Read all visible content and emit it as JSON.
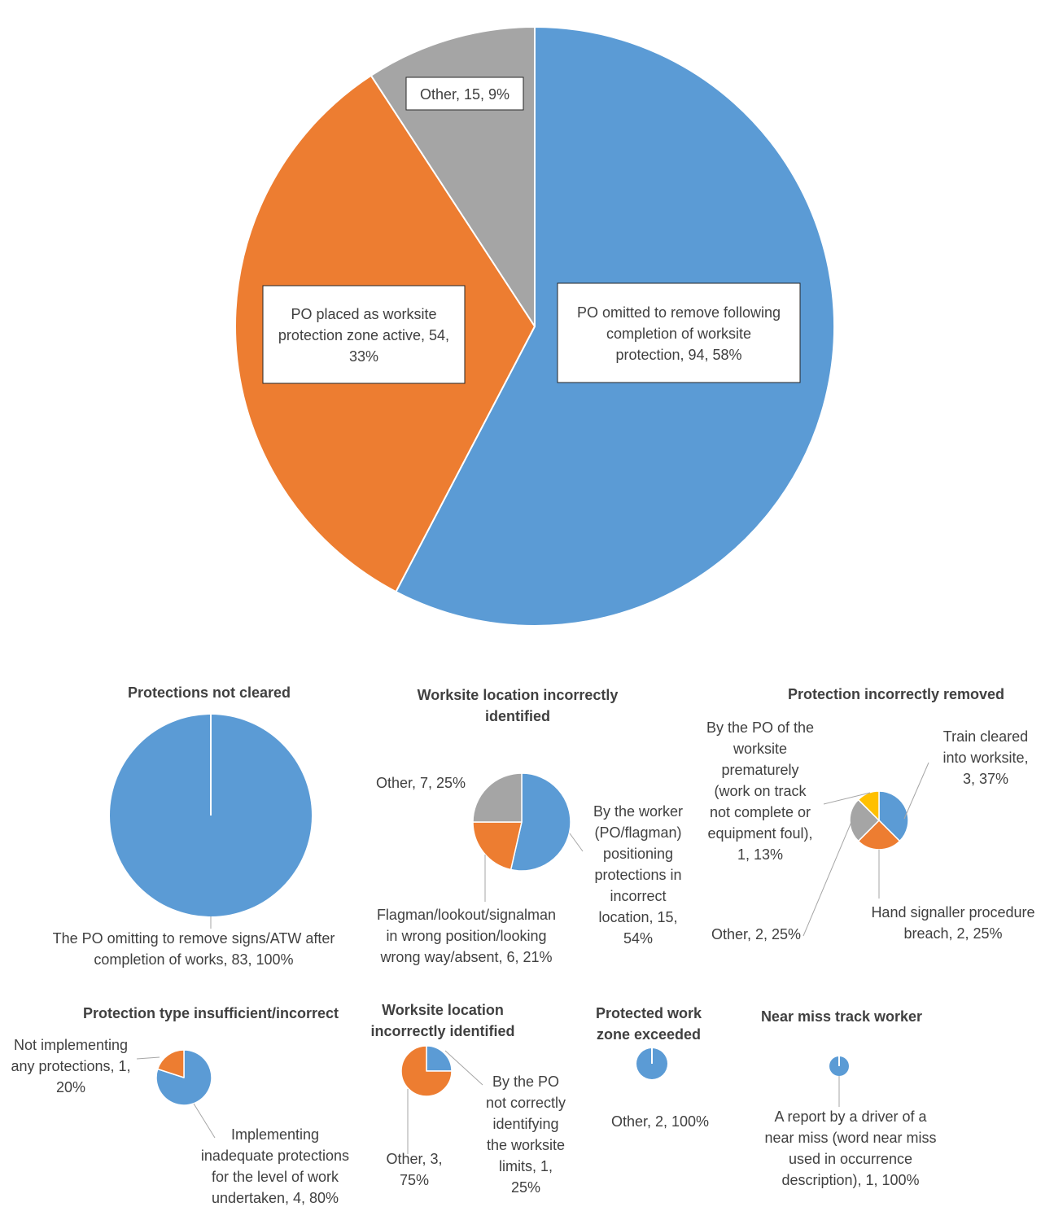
{
  "colors": {
    "blue": "#5b9bd5",
    "orange": "#ed7d31",
    "gray": "#a5a5a5",
    "yellow": "#ffc000",
    "leader": "#a6a6a6",
    "text": "#404040"
  },
  "chart_data": [
    {
      "id": "main",
      "type": "pie",
      "title": "",
      "slices": [
        {
          "name": "PO omitted to remove following completion of worksite protection",
          "value": 94,
          "percent": 58,
          "color": "blue",
          "label_lines": [
            "PO omitted to remove following",
            "completion of worksite",
            "protection, 94, 58%"
          ]
        },
        {
          "name": "PO placed as worksite protection zone active",
          "value": 54,
          "percent": 33,
          "color": "orange",
          "label_lines": [
            "PO placed as worksite",
            "protection zone active, 54,",
            "33%"
          ]
        },
        {
          "name": "Other",
          "value": 15,
          "percent": 9,
          "color": "gray",
          "label_lines": [
            "Other, 15, 9%"
          ]
        }
      ]
    },
    {
      "id": "protections-not-cleared",
      "type": "pie",
      "title": "Protections not cleared",
      "slices": [
        {
          "name": "The PO omitting to remove signs/ATW after completion of works",
          "value": 83,
          "percent": 100,
          "color": "blue",
          "label_lines": [
            "The PO omitting to remove signs/ATW after",
            "completion of works, 83, 100%"
          ]
        }
      ]
    },
    {
      "id": "worksite-location-1",
      "type": "pie",
      "title": "Worksite location incorrectly identified",
      "title_lines": [
        "Worksite location incorrectly",
        "identified"
      ],
      "slices": [
        {
          "name": "By the worker (PO/flagman) positioning protections in incorrect location",
          "value": 15,
          "percent": 54,
          "color": "blue",
          "label_lines": [
            "By the worker",
            "(PO/flagman)",
            "positioning",
            "protections in",
            "incorrect",
            "location, 15,",
            "54%"
          ]
        },
        {
          "name": "Flagman/lookout/signalman in wrong position/looking wrong way/absent",
          "value": 6,
          "percent": 21,
          "color": "orange",
          "label_lines": [
            "Flagman/lookout/signalman",
            "in wrong position/looking",
            "wrong way/absent, 6, 21%"
          ]
        },
        {
          "name": "Other",
          "value": 7,
          "percent": 25,
          "color": "gray",
          "label_lines": [
            "Other, 7, 25%"
          ]
        }
      ]
    },
    {
      "id": "protection-incorrectly-removed",
      "type": "pie",
      "title": "Protection incorrectly removed",
      "slices": [
        {
          "name": "Train cleared into worksite",
          "value": 3,
          "percent": 37,
          "color": "blue",
          "label_lines": [
            "Train cleared",
            "into worksite,",
            "3, 37%"
          ]
        },
        {
          "name": "Hand signaller procedure breach",
          "value": 2,
          "percent": 25,
          "color": "orange",
          "label_lines": [
            "Hand signaller procedure",
            "breach, 2, 25%"
          ]
        },
        {
          "name": "Other",
          "value": 2,
          "percent": 25,
          "color": "gray",
          "label_lines": [
            "Other, 2, 25%"
          ]
        },
        {
          "name": "By the PO of the worksite prematurely (work on track not complete or equipment foul)",
          "value": 1,
          "percent": 13,
          "color": "yellow",
          "label_lines": [
            "By the PO of the",
            "worksite",
            "prematurely",
            "(work on track",
            "not complete or",
            "equipment foul),",
            "1, 13%"
          ]
        }
      ]
    },
    {
      "id": "protection-type",
      "type": "pie",
      "title": "Protection type insufficient/incorrect",
      "slices": [
        {
          "name": "Implementing inadequate protections for the level of work undertaken",
          "value": 4,
          "percent": 80,
          "color": "blue",
          "label_lines": [
            "Implementing",
            "inadequate protections",
            "for the level of work",
            "undertaken, 4, 80%"
          ]
        },
        {
          "name": "Not implementing any protections",
          "value": 1,
          "percent": 20,
          "color": "orange",
          "label_lines": [
            "Not implementing",
            "any protections, 1,",
            "20%"
          ]
        }
      ]
    },
    {
      "id": "worksite-location-2",
      "type": "pie",
      "title": "Worksite location incorrectly identified",
      "title_lines": [
        "Worksite location",
        "incorrectly identified"
      ],
      "slices": [
        {
          "name": "By the PO not correctly identifying the worksite limits",
          "value": 1,
          "percent": 25,
          "color": "blue",
          "label_lines": [
            "By the PO",
            "not correctly",
            "identifying",
            "the worksite",
            "limits, 1,",
            "25%"
          ]
        },
        {
          "name": "Other",
          "value": 3,
          "percent": 75,
          "color": "orange",
          "label_lines": [
            "Other, 3,",
            "75%"
          ]
        }
      ]
    },
    {
      "id": "protected-work-zone",
      "type": "pie",
      "title": "Protected work zone exceeded",
      "title_lines": [
        "Protected work",
        "zone exceeded"
      ],
      "slices": [
        {
          "name": "Other",
          "value": 2,
          "percent": 100,
          "color": "blue",
          "label_lines": [
            "Other, 2, 100%"
          ]
        }
      ]
    },
    {
      "id": "near-miss",
      "type": "pie",
      "title": "Near miss track worker",
      "slices": [
        {
          "name": "A report by a driver of a near miss (word near miss used in occurrence description)",
          "value": 1,
          "percent": 100,
          "color": "blue",
          "label_lines": [
            "A report by a driver of a",
            "near miss (word near miss",
            "used in occurrence",
            "description), 1, 100%"
          ]
        }
      ]
    }
  ]
}
